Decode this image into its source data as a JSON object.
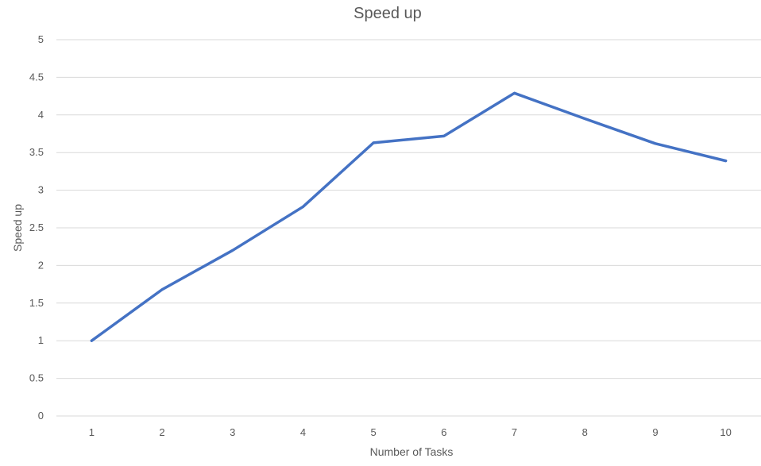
{
  "chart_data": {
    "type": "line",
    "title": "Speed up",
    "xlabel": "Number of Tasks",
    "ylabel": "Speed up",
    "categories": [
      "1",
      "2",
      "3",
      "4",
      "5",
      "6",
      "7",
      "8",
      "9",
      "10"
    ],
    "series": [
      {
        "values": [
          1.0,
          1.68,
          2.2,
          2.78,
          3.63,
          3.72,
          4.29,
          3.95,
          3.62,
          3.39
        ],
        "color": "#4472c4"
      }
    ],
    "ylim": [
      0,
      5
    ],
    "yticks": [
      "0",
      "0.5",
      "1",
      "1.5",
      "2",
      "2.5",
      "3",
      "3.5",
      "4",
      "4.5",
      "5"
    ],
    "ytick_values": [
      0,
      0.5,
      1,
      1.5,
      2,
      2.5,
      3,
      3.5,
      4,
      4.5,
      5
    ],
    "grid": true,
    "legend": "none"
  }
}
